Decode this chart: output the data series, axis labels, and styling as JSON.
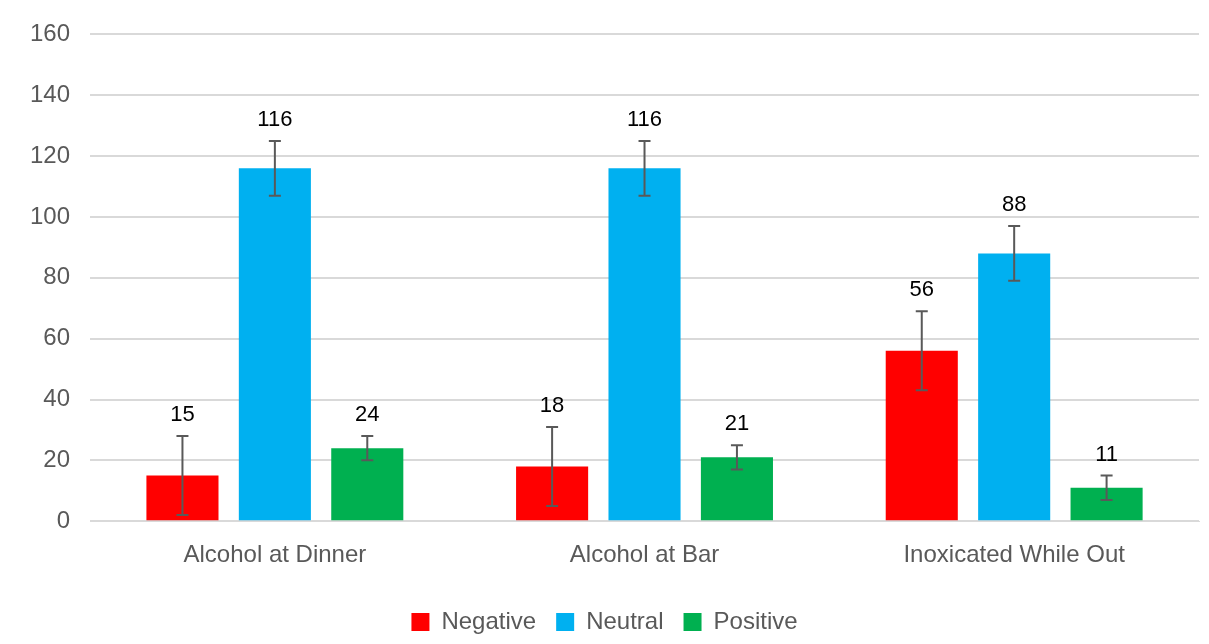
{
  "chart_data": {
    "type": "bar",
    "categories": [
      "Alcohol at Dinner",
      "Alcohol at Bar",
      "Inoxicated While Out"
    ],
    "series": [
      {
        "name": "Negative",
        "color": "#ff0000",
        "values": [
          15,
          18,
          56
        ],
        "errors": [
          13,
          13,
          13
        ]
      },
      {
        "name": "Neutral",
        "color": "#00b0f0",
        "values": [
          116,
          116,
          88
        ],
        "errors": [
          9,
          9,
          9
        ]
      },
      {
        "name": "Positive",
        "color": "#00b050",
        "values": [
          24,
          21,
          11
        ],
        "errors": [
          4,
          4,
          4
        ]
      }
    ],
    "ylim": [
      0,
      160
    ],
    "yticks": [
      0,
      20,
      40,
      60,
      80,
      100,
      120,
      140,
      160
    ],
    "grid": "y",
    "legend": "bottom",
    "data_labels": true
  }
}
